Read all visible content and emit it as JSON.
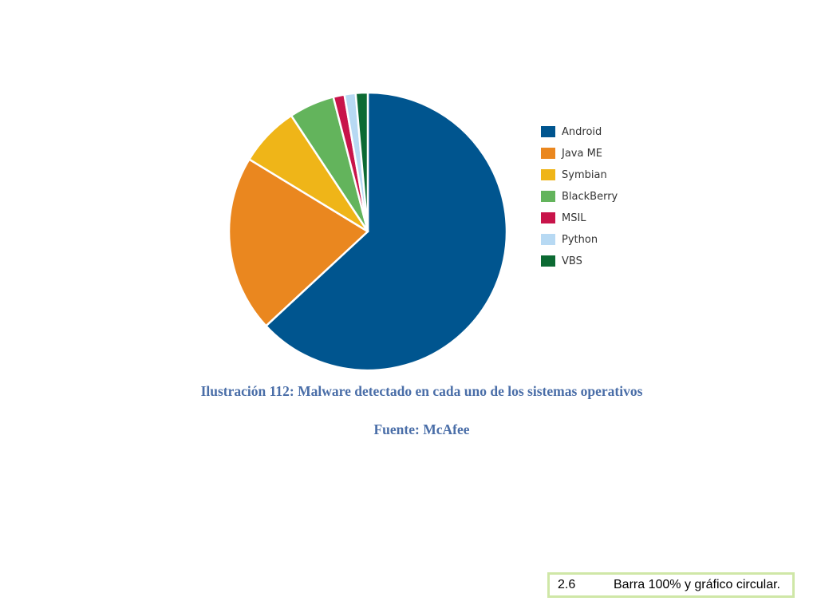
{
  "chart_data": {
    "type": "pie",
    "title": "",
    "labels": [
      "Android",
      "Java ME",
      "Symbian",
      "BlackBerry",
      "MSIL",
      "Python",
      "VBS"
    ],
    "values": [
      63.1,
      20.6,
      7.0,
      5.3,
      1.3,
      1.3,
      1.4
    ],
    "colors": [
      "#00558f",
      "#ea871f",
      "#efb518",
      "#63b45c",
      "#c8144a",
      "#b7d9f3",
      "#0c6a33"
    ],
    "legend_position": "right"
  },
  "caption": "Ilustración 112: Malware detectado en cada uno de los sistemas operativos",
  "source": "Fuente: McAfee",
  "footer": {
    "number": "2.6",
    "text": "Barra 100% y gráfico circular."
  }
}
